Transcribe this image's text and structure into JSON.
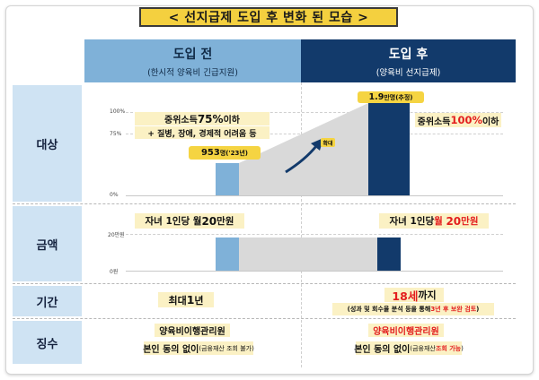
{
  "title": "< 선지급제 도입 후 변화 된 모습 >",
  "columns": {
    "before": {
      "heading": "도입 전",
      "subheading": "(한시적 양육비 긴급지원)"
    },
    "after": {
      "heading": "도입 후",
      "subheading": "(양육비 선지급제)"
    }
  },
  "rows": {
    "target": "대상",
    "amount": "금액",
    "period": "기간",
    "collection": "징수"
  },
  "target_section": {
    "y_ticks": [
      "100%",
      "75%",
      "0%"
    ],
    "before_line1_pre": "중위소득 ",
    "before_line1_pct": "75%",
    "before_line1_post": " 이하",
    "before_line2": "+ 질병, 장애, 경제적 어려움 등",
    "before_count": "953",
    "before_count_unit": "명('23년)",
    "expand_label": "확대",
    "after_count": "1.9",
    "after_count_unit": "만명(추정)",
    "after_text_pre": "중위소득 ",
    "after_text_red": "100%",
    "after_text_post": " 이하"
  },
  "amount_section": {
    "y_ticks": [
      "20만원",
      "0원"
    ],
    "before_pre": "자녀 1인당 월 ",
    "before_value": "20",
    "before_unit": "만원",
    "after_pre": "자녀 1인당 ",
    "after_red_month": "월",
    "after_red_value": "20",
    "after_red_unit": "만원"
  },
  "period_section": {
    "before_pre": "최대 ",
    "before_value": "1",
    "before_unit": "년",
    "after_value": "18세",
    "after_post": "까지",
    "after_sub_pre": "(성과 및 회수율 분석 등을 통해 ",
    "after_sub_red": "3년 후 보완 검토",
    "after_sub_post": ")"
  },
  "collection_section": {
    "before_line1": "양육비이행관리원",
    "before_line2_main": "본인 동의 없이",
    "before_line2_small": "(금융재산 조회 불가)",
    "after_line1": "양육비이행관리원",
    "after_line2_main": "본인 동의 없이",
    "after_line2_small_pre": "(금융재산 ",
    "after_line2_small_red": "조회 가능",
    "after_line2_small_post": ")"
  },
  "colors": {
    "title_bg": "#f4d03f",
    "before_header": "#7fb1d8",
    "after_header": "#123a6b",
    "row_label_bg": "#cfe3f3",
    "highlight": "#f5d442",
    "accent_red": "#e31d1d",
    "arrow": "#123a6b"
  }
}
